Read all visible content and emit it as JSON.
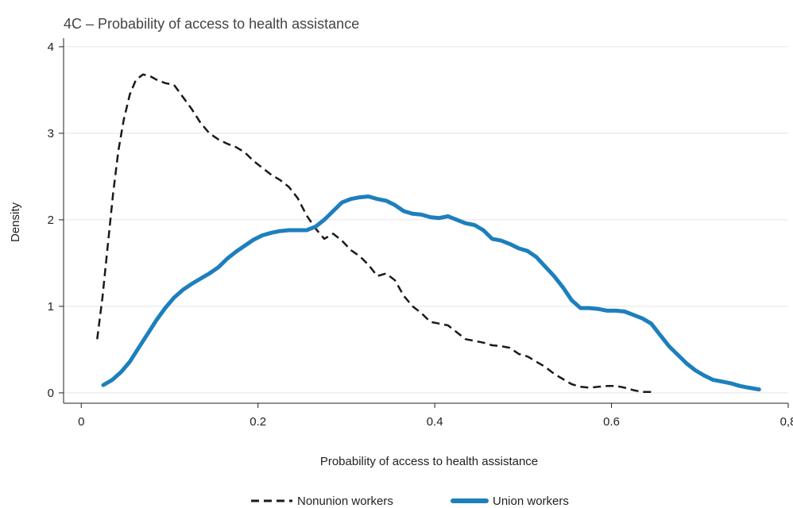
{
  "chart_data": {
    "type": "line",
    "title": "4C – Probability of access to health assistance",
    "xlabel": "Probability of access to health assistance",
    "ylabel": "Density",
    "xlim": [
      -0.02,
      0.8
    ],
    "ylim": [
      -0.12,
      4.1
    ],
    "x_ticks": [
      0,
      0.2,
      0.4,
      0.6,
      0.8
    ],
    "x_tick_labels": [
      "0",
      "0.2",
      "0.4",
      "0.6",
      "0,8"
    ],
    "y_ticks": [
      0,
      1,
      2,
      3,
      4
    ],
    "y_tick_labels": [
      "0",
      "1",
      "2",
      "3",
      "4"
    ],
    "grid": "horizontal",
    "legend_position": "bottom",
    "series": [
      {
        "name": "Nonunion workers",
        "color": "#1a1a1a",
        "style": "dashed",
        "x": [
          0.018,
          0.024,
          0.03,
          0.036,
          0.042,
          0.048,
          0.055,
          0.062,
          0.07,
          0.078,
          0.085,
          0.095,
          0.105,
          0.115,
          0.125,
          0.135,
          0.145,
          0.155,
          0.165,
          0.175,
          0.185,
          0.195,
          0.205,
          0.215,
          0.225,
          0.235,
          0.245,
          0.255,
          0.265,
          0.275,
          0.285,
          0.295,
          0.305,
          0.315,
          0.325,
          0.335,
          0.345,
          0.355,
          0.365,
          0.375,
          0.385,
          0.395,
          0.405,
          0.415,
          0.425,
          0.435,
          0.445,
          0.455,
          0.465,
          0.475,
          0.485,
          0.495,
          0.505,
          0.515,
          0.525,
          0.535,
          0.545,
          0.555,
          0.565,
          0.575,
          0.585,
          0.595,
          0.605,
          0.615,
          0.625,
          0.635,
          0.645
        ],
        "y": [
          0.62,
          1.1,
          1.7,
          2.3,
          2.8,
          3.15,
          3.45,
          3.62,
          3.68,
          3.66,
          3.62,
          3.58,
          3.56,
          3.42,
          3.28,
          3.12,
          3.0,
          2.93,
          2.88,
          2.84,
          2.78,
          2.68,
          2.6,
          2.52,
          2.46,
          2.38,
          2.25,
          2.05,
          1.9,
          1.78,
          1.84,
          1.76,
          1.65,
          1.58,
          1.48,
          1.35,
          1.38,
          1.3,
          1.12,
          1.0,
          0.92,
          0.82,
          0.8,
          0.78,
          0.7,
          0.62,
          0.6,
          0.58,
          0.55,
          0.54,
          0.52,
          0.45,
          0.42,
          0.36,
          0.3,
          0.22,
          0.16,
          0.1,
          0.07,
          0.06,
          0.07,
          0.08,
          0.08,
          0.06,
          0.03,
          0.01,
          0.01
        ]
      },
      {
        "name": "Union workers",
        "color": "#1d7fbd",
        "style": "solid",
        "x": [
          0.025,
          0.035,
          0.045,
          0.055,
          0.065,
          0.075,
          0.085,
          0.095,
          0.105,
          0.115,
          0.125,
          0.135,
          0.145,
          0.155,
          0.165,
          0.175,
          0.185,
          0.195,
          0.205,
          0.215,
          0.225,
          0.235,
          0.245,
          0.255,
          0.265,
          0.275,
          0.285,
          0.295,
          0.305,
          0.315,
          0.325,
          0.335,
          0.345,
          0.355,
          0.365,
          0.375,
          0.385,
          0.395,
          0.405,
          0.415,
          0.425,
          0.435,
          0.445,
          0.455,
          0.465,
          0.475,
          0.485,
          0.495,
          0.505,
          0.515,
          0.525,
          0.535,
          0.545,
          0.555,
          0.565,
          0.575,
          0.585,
          0.595,
          0.605,
          0.615,
          0.625,
          0.635,
          0.645,
          0.655,
          0.665,
          0.675,
          0.685,
          0.695,
          0.705,
          0.715,
          0.725,
          0.735,
          0.745,
          0.755,
          0.767
        ],
        "y": [
          0.09,
          0.15,
          0.24,
          0.36,
          0.52,
          0.68,
          0.84,
          0.98,
          1.1,
          1.19,
          1.26,
          1.32,
          1.38,
          1.45,
          1.55,
          1.63,
          1.7,
          1.77,
          1.82,
          1.85,
          1.87,
          1.88,
          1.88,
          1.88,
          1.92,
          2.0,
          2.1,
          2.2,
          2.24,
          2.26,
          2.27,
          2.24,
          2.22,
          2.17,
          2.1,
          2.07,
          2.06,
          2.03,
          2.02,
          2.04,
          2.0,
          1.96,
          1.94,
          1.88,
          1.78,
          1.76,
          1.72,
          1.67,
          1.64,
          1.57,
          1.46,
          1.35,
          1.22,
          1.07,
          0.98,
          0.98,
          0.97,
          0.95,
          0.95,
          0.94,
          0.9,
          0.86,
          0.8,
          0.67,
          0.54,
          0.44,
          0.34,
          0.26,
          0.2,
          0.15,
          0.13,
          0.11,
          0.08,
          0.06,
          0.04
        ]
      }
    ]
  }
}
